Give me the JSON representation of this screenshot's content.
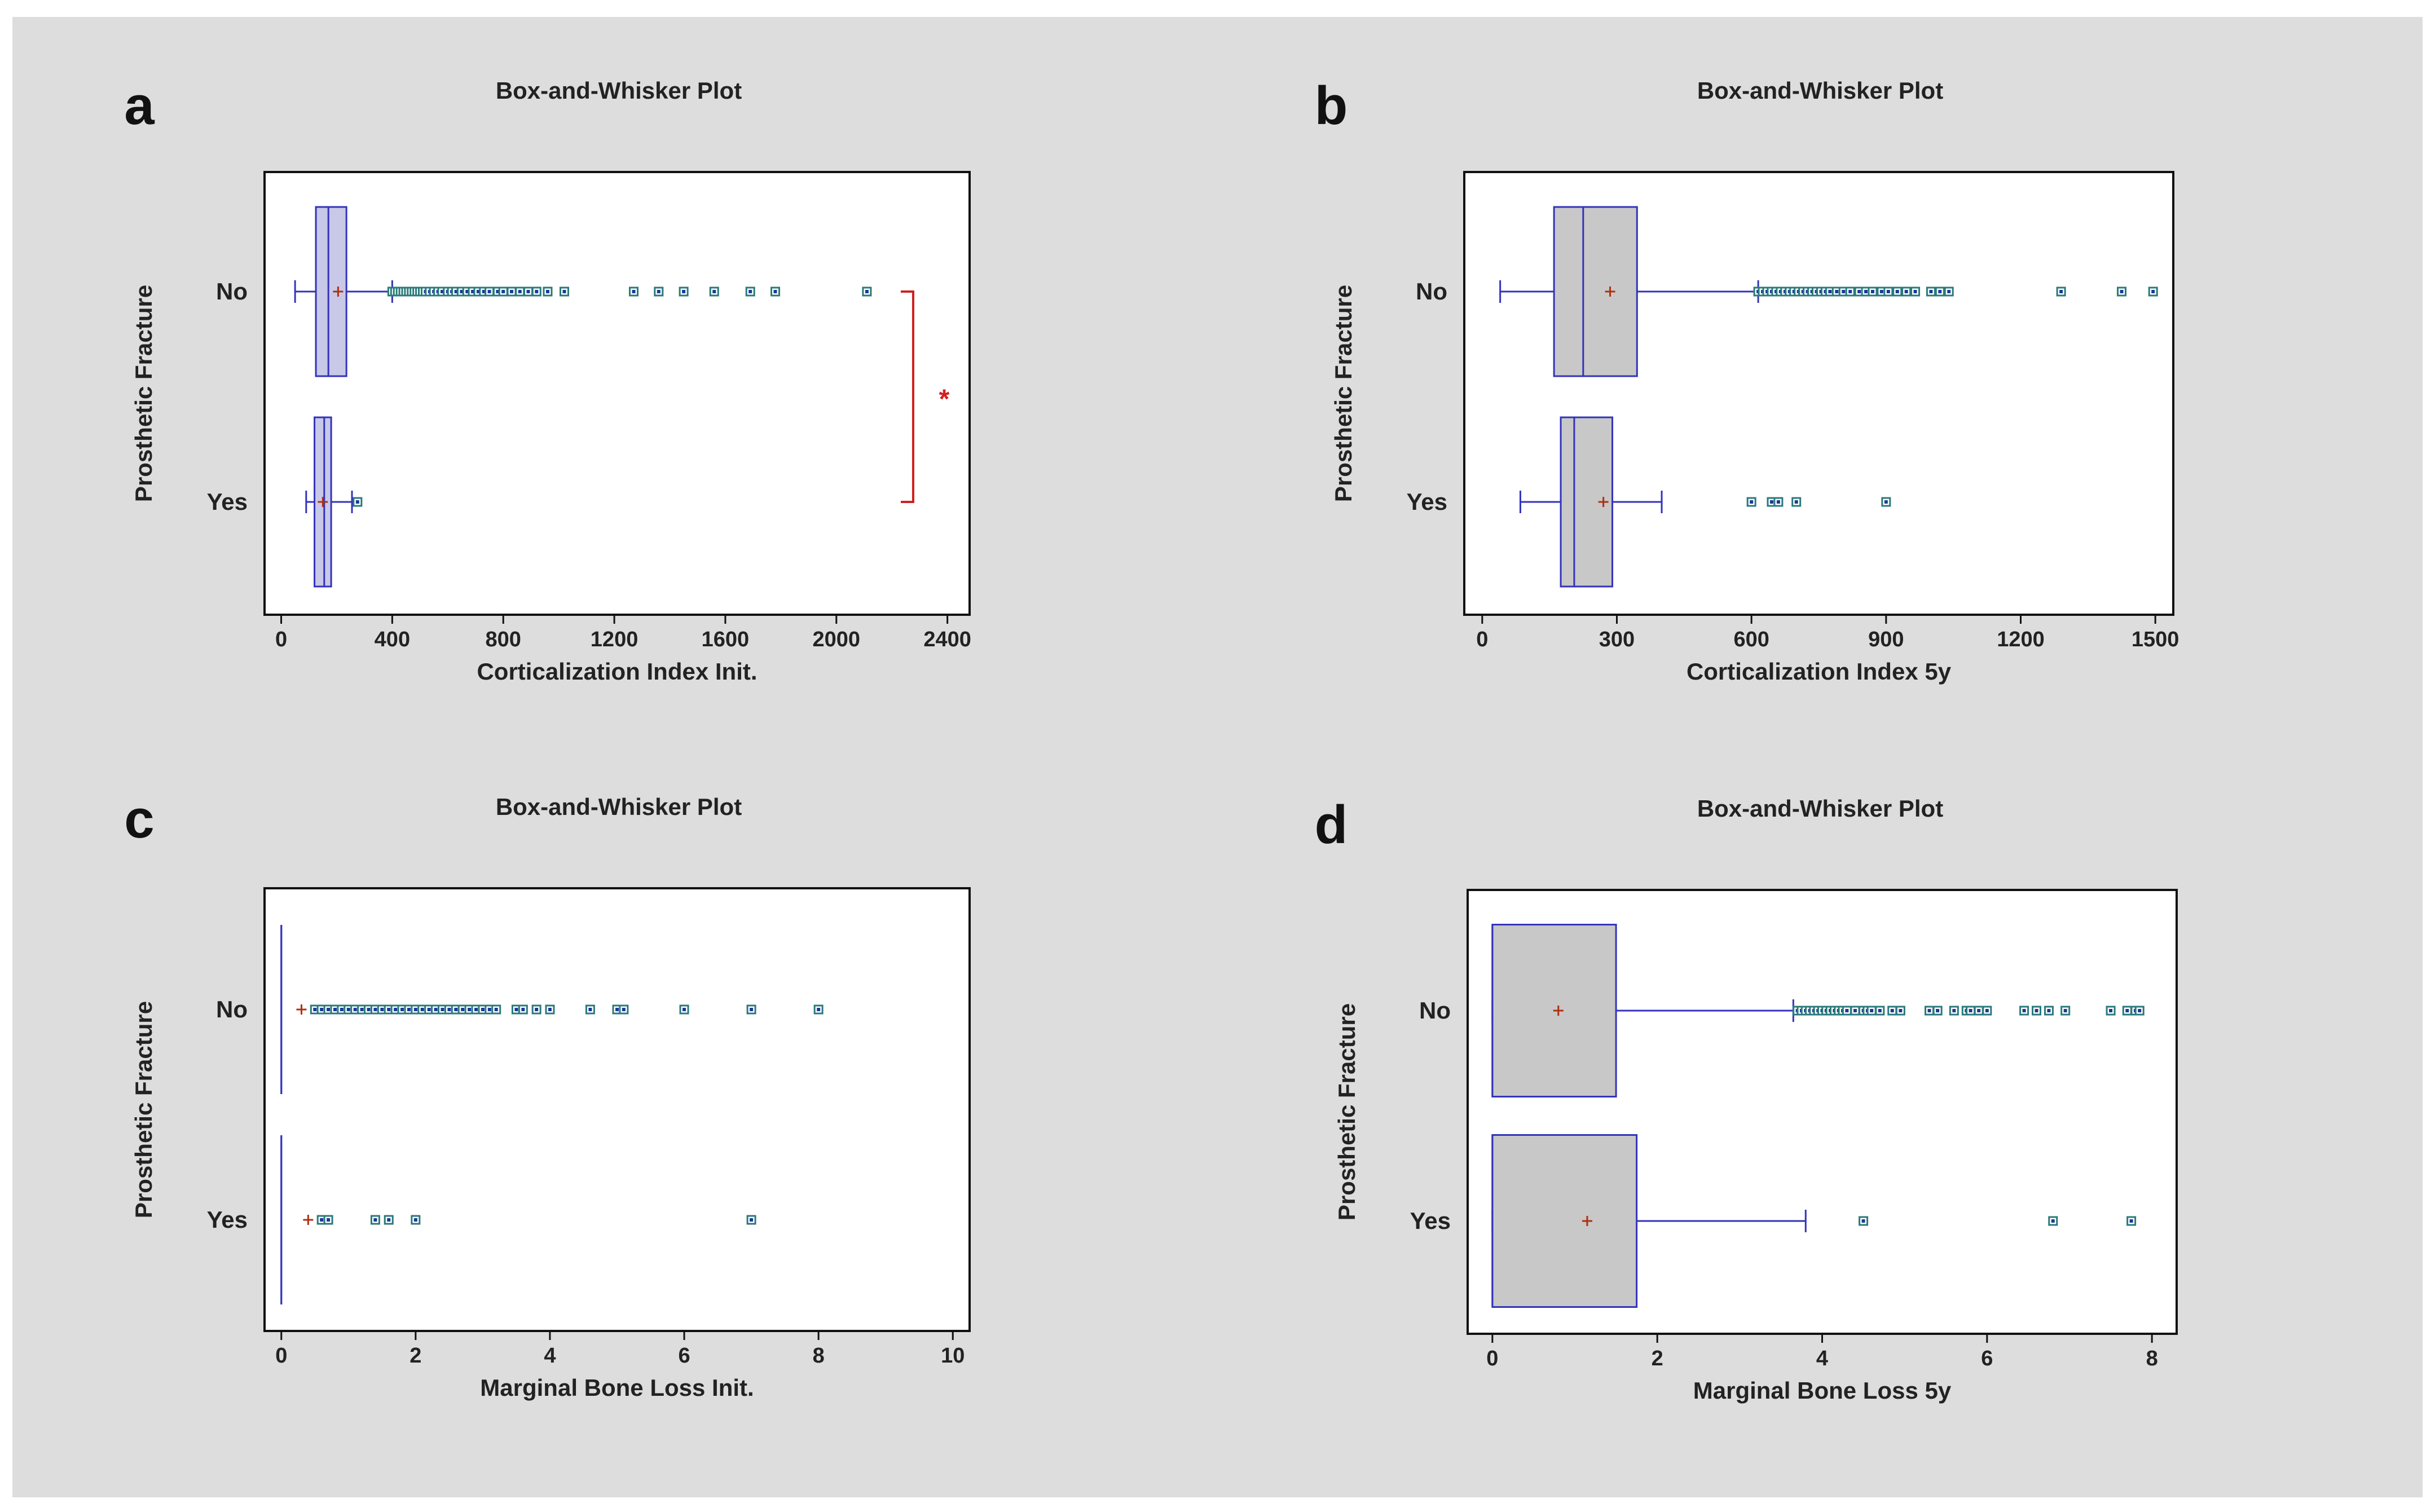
{
  "colors": {
    "background": "#dddddd",
    "box_fill_a_c": "#c8c8e8",
    "box_fill_b_d": "#c8c8c8",
    "box_stroke": "#3333bb",
    "outlier": "#2a7a7a",
    "outlier_inner": "#1a3a9a",
    "mean_marker": "#b03010",
    "bracket": "#d02020"
  },
  "chart_data": [
    {
      "panel": "a",
      "type": "box",
      "title": "Box-and-Whisker Plot",
      "xlabel": "Corticalization Index Init.",
      "ylabel": "Prosthetic Fracture",
      "xlim": [
        -60,
        2480
      ],
      "xticks": [
        0,
        400,
        800,
        1200,
        1600,
        2000,
        2400
      ],
      "categories": [
        "No",
        "Yes"
      ],
      "boxes": [
        {
          "category": "No",
          "whisker_low": 50,
          "q1": 125,
          "median": 170,
          "q3": 235,
          "whisker_high": 400,
          "mean": 205,
          "outliers": [
            400,
            410,
            420,
            430,
            440,
            450,
            460,
            470,
            480,
            490,
            500,
            510,
            520,
            535,
            550,
            565,
            580,
            600,
            615,
            630,
            650,
            670,
            690,
            710,
            730,
            750,
            780,
            800,
            830,
            860,
            890,
            920,
            960,
            1020,
            1270,
            1360,
            1450,
            1560,
            1690,
            1780,
            2110
          ]
        },
        {
          "category": "Yes",
          "whisker_low": 90,
          "q1": 120,
          "median": 155,
          "q3": 180,
          "whisker_high": 255,
          "mean": 150,
          "outliers": [
            275
          ]
        }
      ],
      "annotation": {
        "type": "significance-bracket",
        "text": "*"
      }
    },
    {
      "panel": "b",
      "type": "box",
      "title": "Box-and-Whisker Plot",
      "xlabel": "Corticalization Index 5y",
      "ylabel": "Prosthetic Fracture",
      "xlim": [
        -40,
        1540
      ],
      "xticks": [
        0,
        300,
        600,
        900,
        1200,
        1500
      ],
      "categories": [
        "No",
        "Yes"
      ],
      "boxes": [
        {
          "category": "No",
          "whisker_low": 40,
          "q1": 160,
          "median": 225,
          "q3": 345,
          "whisker_high": 615,
          "mean": 285,
          "outliers": [
            615,
            625,
            635,
            645,
            655,
            665,
            675,
            685,
            695,
            705,
            715,
            725,
            735,
            745,
            755,
            765,
            775,
            790,
            805,
            820,
            840,
            855,
            870,
            890,
            905,
            925,
            945,
            965,
            1000,
            1020,
            1040,
            1290,
            1425,
            1495
          ]
        },
        {
          "category": "Yes",
          "whisker_low": 85,
          "q1": 175,
          "median": 205,
          "q3": 290,
          "whisker_high": 400,
          "mean": 270,
          "outliers": [
            600,
            645,
            660,
            700,
            900
          ]
        }
      ]
    },
    {
      "panel": "c",
      "type": "box",
      "title": "Box-and-Whisker Plot",
      "xlabel": "Marginal Bone Loss Init.",
      "ylabel": "Prosthetic Fracture",
      "xlim": [
        -0.25,
        10.25
      ],
      "xticks": [
        0,
        2,
        4,
        6,
        8,
        10
      ],
      "categories": [
        "No",
        "Yes"
      ],
      "boxes": [
        {
          "category": "No",
          "whisker_low": 0,
          "q1": 0,
          "median": 0,
          "q3": 0,
          "whisker_high": 0,
          "mean": 0.3,
          "outliers": [
            0.5,
            0.6,
            0.7,
            0.8,
            0.9,
            1.0,
            1.1,
            1.2,
            1.3,
            1.4,
            1.5,
            1.6,
            1.7,
            1.8,
            1.9,
            2.0,
            2.1,
            2.2,
            2.3,
            2.4,
            2.5,
            2.6,
            2.7,
            2.8,
            2.9,
            3.0,
            3.1,
            3.2,
            3.5,
            3.6,
            3.8,
            4.0,
            4.6,
            5.0,
            5.1,
            6.0,
            7.0,
            8.0
          ]
        },
        {
          "category": "Yes",
          "whisker_low": 0,
          "q1": 0,
          "median": 0,
          "q3": 0,
          "whisker_high": 0,
          "mean": 0.4,
          "outliers": [
            0.6,
            0.7,
            1.4,
            1.6,
            2.0,
            7.0
          ]
        }
      ]
    },
    {
      "panel": "d",
      "type": "box",
      "title": "Box-and-Whisker Plot",
      "xlabel": "Marginal Bone Loss 5y",
      "ylabel": "Prosthetic Fracture",
      "xlim": [
        -0.3,
        8.3
      ],
      "xticks": [
        0,
        2,
        4,
        6,
        8
      ],
      "categories": [
        "No",
        "Yes"
      ],
      "boxes": [
        {
          "category": "No",
          "whisker_low": 0,
          "q1": 0,
          "median": 0,
          "q3": 1.5,
          "whisker_high": 3.65,
          "mean": 0.8,
          "outliers": [
            3.7,
            3.75,
            3.8,
            3.85,
            3.9,
            3.95,
            4.0,
            4.05,
            4.1,
            4.15,
            4.2,
            4.25,
            4.3,
            4.4,
            4.5,
            4.55,
            4.6,
            4.7,
            4.85,
            4.95,
            5.3,
            5.4,
            5.6,
            5.75,
            5.8,
            5.9,
            6.0,
            6.45,
            6.6,
            6.75,
            6.95,
            7.5,
            7.7,
            7.8,
            7.85
          ]
        },
        {
          "category": "Yes",
          "whisker_low": 0,
          "q1": 0,
          "median": 0,
          "q3": 1.75,
          "whisker_high": 3.8,
          "mean": 1.15,
          "outliers": [
            4.5,
            6.8,
            7.75
          ]
        }
      ]
    }
  ]
}
